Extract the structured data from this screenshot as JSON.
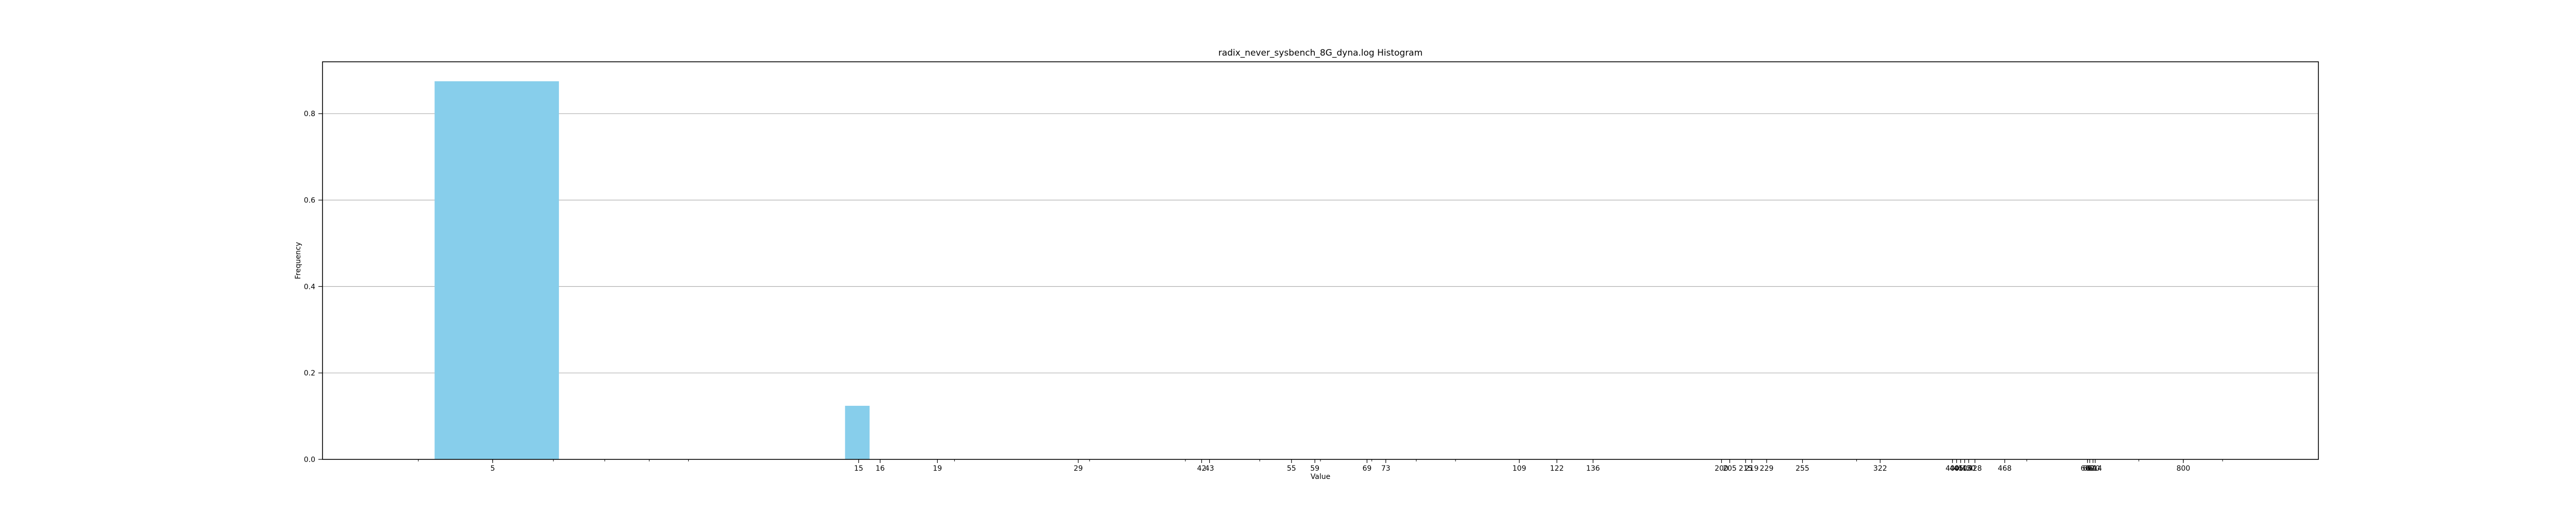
{
  "chart_data": {
    "type": "bar",
    "title": "radix_never_sysbench_8G_dyna.log Histogram",
    "xlabel": "Value",
    "ylabel": "Frequency",
    "xscale": "log",
    "xlim": [
      3.0,
      1200
    ],
    "ylim": [
      0,
      0.92
    ],
    "yticks": [
      0.0,
      0.2,
      0.4,
      0.6,
      0.8
    ],
    "ytick_labels": [
      "0.0",
      "0.2",
      "0.4",
      "0.6",
      "0.8"
    ],
    "grid": "y-only",
    "bar_color": "#87ceeb",
    "xticks": [
      5,
      15,
      16,
      19,
      29,
      42,
      43,
      55,
      59,
      69,
      73,
      109,
      122,
      136,
      200,
      205,
      215,
      219,
      229,
      255,
      322,
      400,
      405,
      410,
      415,
      420,
      428,
      468,
      600,
      604,
      610,
      614,
      800
    ],
    "xtick_labels": [
      "5",
      "15",
      "16",
      "19",
      "29",
      "42",
      "43",
      "55",
      "59",
      "69",
      "73",
      "109",
      "122",
      "136",
      "200",
      "205",
      "215",
      "219",
      "229",
      "255",
      "322",
      "400",
      "405",
      "410",
      "415",
      "420",
      "428",
      "468",
      "600",
      "604",
      "610",
      "614",
      "800"
    ],
    "bars": [
      {
        "x_start": 4.2,
        "x_end": 6.1,
        "value": 0.875
      },
      {
        "x_start": 14.4,
        "x_end": 15.5,
        "value": 0.124
      }
    ]
  }
}
